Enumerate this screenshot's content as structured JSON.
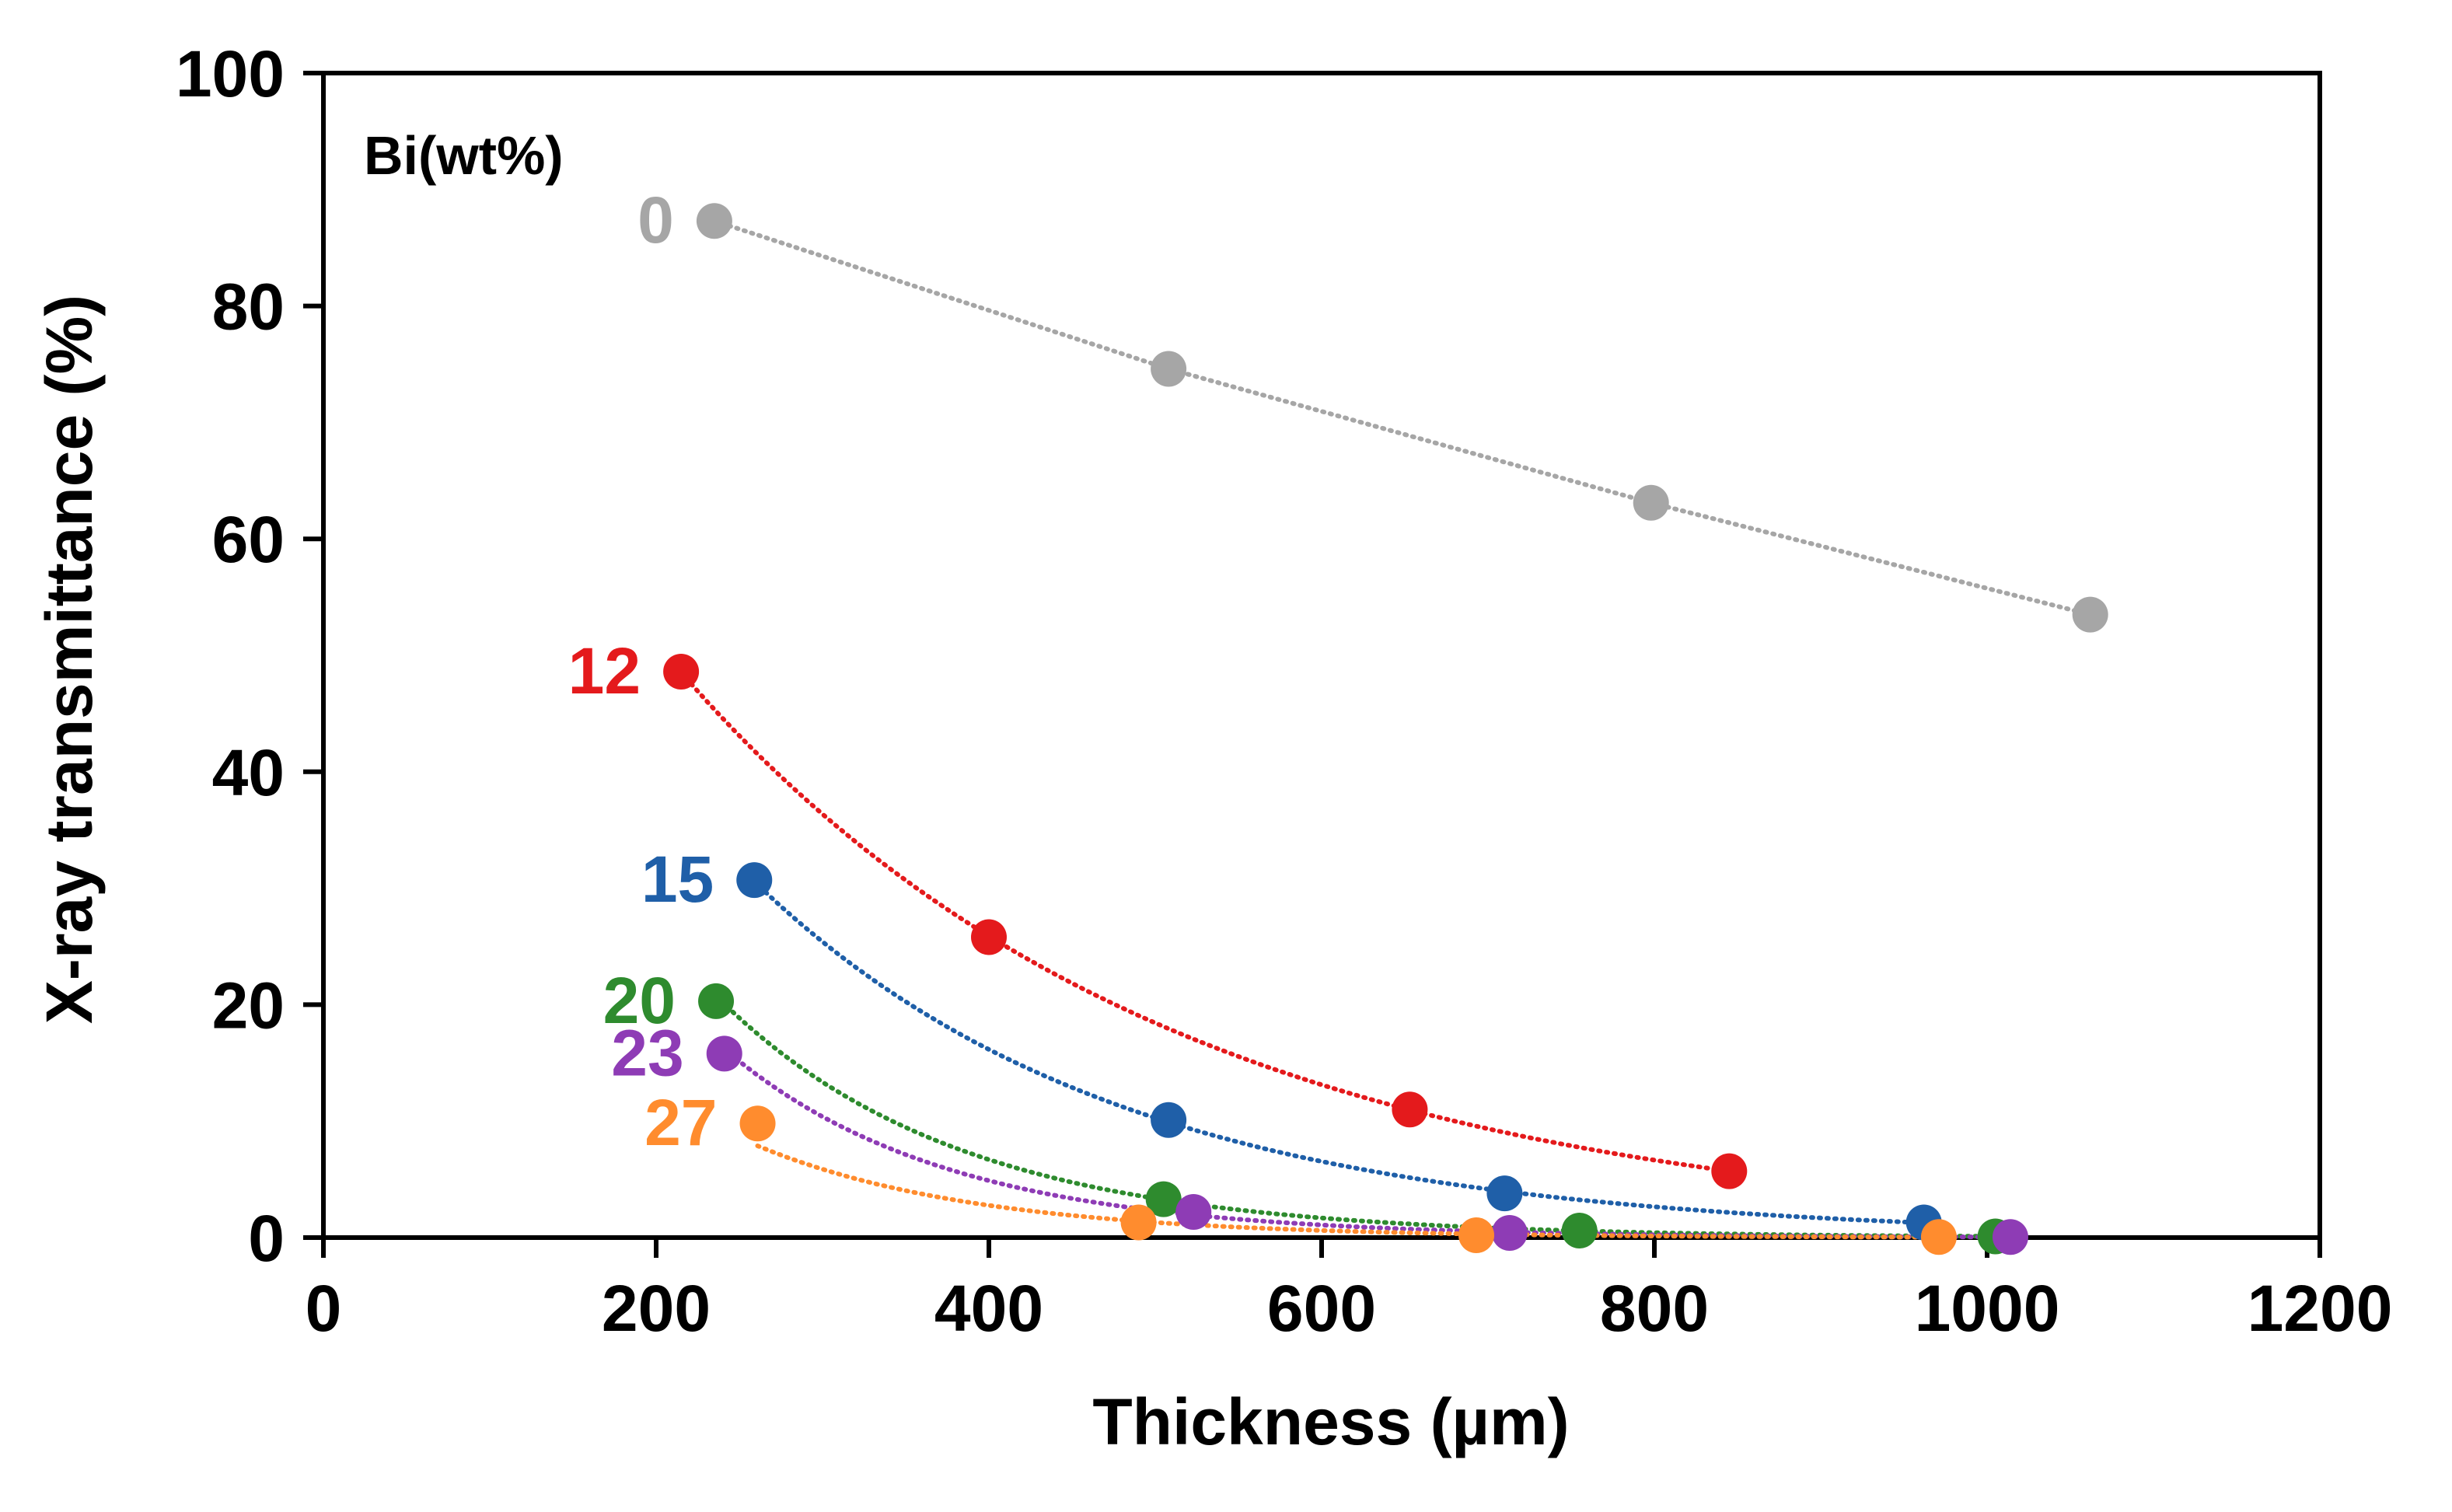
{
  "chart_data": {
    "type": "scatter",
    "title": "",
    "xlabel": "Thickness (µm)",
    "ylabel": "X-ray transmittance (%)",
    "xlim": [
      0,
      1200
    ],
    "ylim": [
      0,
      100
    ],
    "xticks": [
      0,
      200,
      400,
      600,
      800,
      1000,
      1200
    ],
    "yticks": [
      0,
      20,
      40,
      60,
      80,
      100
    ],
    "legend_title": "Bi(wt%)",
    "grid": false,
    "series": [
      {
        "name": "0",
        "color": "#A6A6A6",
        "fit": "linear",
        "x": [
          235,
          508,
          798,
          1062
        ],
        "y": [
          87.3,
          74.6,
          63.1,
          53.5
        ]
      },
      {
        "name": "12",
        "color": "#E41A1C",
        "fit": "exponential",
        "x": [
          215,
          400,
          653,
          845
        ],
        "y": [
          48.6,
          25.8,
          11.0,
          5.7
        ]
      },
      {
        "name": "15",
        "color": "#1F5FA8",
        "fit": "exponential",
        "x": [
          259,
          508,
          710,
          962
        ],
        "y": [
          30.7,
          10.1,
          3.8,
          1.3
        ]
      },
      {
        "name": "20",
        "color": "#2E8B2E",
        "fit": "exponential",
        "x": [
          236,
          505,
          755,
          1005
        ],
        "y": [
          20.3,
          3.3,
          0.6,
          0.1
        ]
      },
      {
        "name": "23",
        "color": "#8E3CB5",
        "fit": "exponential",
        "x": [
          241,
          523,
          713,
          1014
        ],
        "y": [
          15.8,
          2.2,
          0.4,
          0.05
        ]
      },
      {
        "name": "27",
        "color": "#FF8C2E",
        "fit": "exponential",
        "x": [
          261,
          490,
          693,
          971
        ],
        "y": [
          9.8,
          1.3,
          0.2,
          0.05
        ]
      }
    ]
  }
}
